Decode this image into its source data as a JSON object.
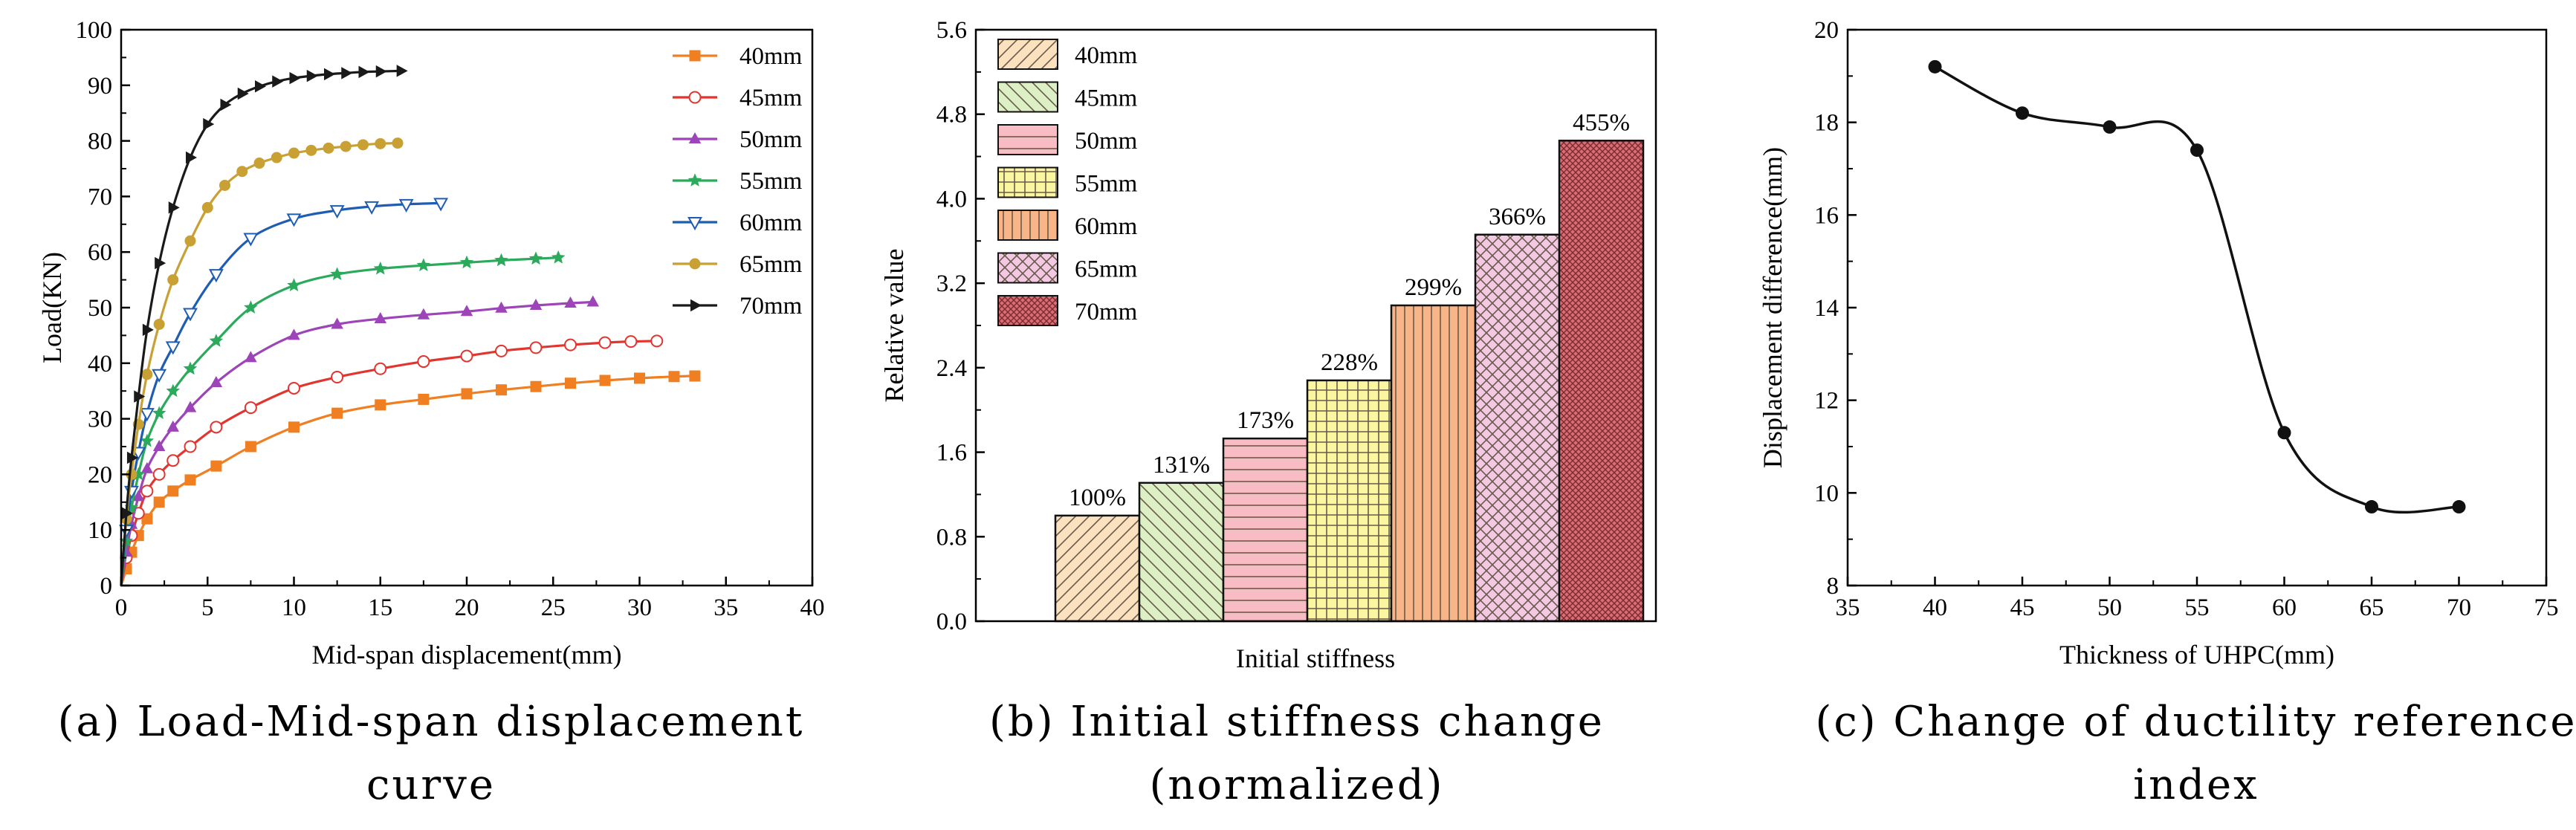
{
  "chart_data": [
    {
      "type": "line",
      "caption": [
        "(a) Load-Mid-span displacement",
        "curve"
      ],
      "xlabel": "Mid-span displacement(mm)",
      "ylabel": "Load(KN)",
      "xlim": [
        0,
        40
      ],
      "ylim": [
        0,
        100
      ],
      "xticks": [
        "0",
        "5",
        "10",
        "15",
        "20",
        "25",
        "30",
        "35",
        "40"
      ],
      "yticks": [
        "0",
        "10",
        "20",
        "30",
        "40",
        "50",
        "60",
        "70",
        "80",
        "90",
        "100"
      ],
      "legend_position": "top-right",
      "series": [
        {
          "name": "40mm",
          "color": "#F07F22",
          "marker": "square",
          "x": [
            0,
            0.3,
            0.6,
            1.0,
            1.5,
            2.2,
            3.0,
            4.0,
            5.5,
            7.5,
            10,
            12.5,
            15,
            17.5,
            20,
            22,
            24,
            26,
            28,
            30,
            32,
            33.2
          ],
          "y": [
            0,
            3,
            6,
            9,
            12,
            15,
            17,
            19,
            21.5,
            25,
            28.5,
            31,
            32.5,
            33.5,
            34.5,
            35.2,
            35.8,
            36.4,
            36.9,
            37.3,
            37.6,
            37.7
          ]
        },
        {
          "name": "45mm",
          "color": "#E2352F",
          "marker": "circle-open",
          "x": [
            0,
            0.3,
            0.6,
            1.0,
            1.5,
            2.2,
            3.0,
            4.0,
            5.5,
            7.5,
            10,
            12.5,
            15,
            17.5,
            20,
            22,
            24,
            26,
            28,
            29.5,
            31
          ],
          "y": [
            0,
            5,
            9,
            13,
            17,
            20,
            22.5,
            25,
            28.5,
            32,
            35.5,
            37.5,
            39,
            40.3,
            41.3,
            42.2,
            42.8,
            43.3,
            43.7,
            43.9,
            44
          ]
        },
        {
          "name": "50mm",
          "color": "#9C44B8",
          "marker": "triangle-up",
          "x": [
            0,
            0.3,
            0.6,
            1.0,
            1.5,
            2.2,
            3.0,
            4.0,
            5.5,
            7.5,
            10,
            12.5,
            15,
            17.5,
            20,
            22,
            24,
            26,
            27.3
          ],
          "y": [
            0,
            6,
            11,
            16,
            21,
            25,
            28.5,
            32,
            36.5,
            41,
            45,
            47,
            48,
            48.7,
            49.3,
            49.9,
            50.4,
            50.8,
            51
          ]
        },
        {
          "name": "55mm",
          "color": "#2BAA5C",
          "marker": "star",
          "x": [
            0,
            0.3,
            0.6,
            1.0,
            1.5,
            2.2,
            3.0,
            4.0,
            5.5,
            7.5,
            10,
            12.5,
            15,
            17.5,
            20,
            22,
            24,
            25.3
          ],
          "y": [
            0,
            8,
            14,
            20,
            26,
            31,
            35,
            39,
            44,
            50,
            54,
            56,
            57,
            57.6,
            58.1,
            58.5,
            58.8,
            59
          ]
        },
        {
          "name": "60mm",
          "color": "#1F5DB3",
          "marker": "triangle-down-open",
          "x": [
            0,
            0.3,
            0.6,
            1.0,
            1.5,
            2.2,
            3.0,
            4.0,
            5.5,
            7.5,
            10,
            12.5,
            14.5,
            16.5,
            18.5
          ],
          "y": [
            0,
            10,
            17,
            24,
            31,
            38,
            43,
            49,
            56,
            62.5,
            66,
            67.5,
            68.2,
            68.6,
            68.8
          ]
        },
        {
          "name": "65mm",
          "color": "#C8A034",
          "marker": "circle",
          "x": [
            0,
            0.3,
            0.6,
            1.0,
            1.5,
            2.2,
            3.0,
            4.0,
            5.0,
            6.0,
            7.0,
            8.0,
            9.0,
            10,
            11,
            12,
            13,
            14,
            15,
            16
          ],
          "y": [
            0,
            12,
            20,
            29,
            38,
            47,
            55,
            62,
            68,
            72,
            74.5,
            76,
            77,
            77.8,
            78.3,
            78.7,
            79,
            79.3,
            79.5,
            79.6
          ]
        },
        {
          "name": "70mm",
          "color": "#1A1A1A",
          "marker": "triangle-right",
          "x": [
            0,
            0.3,
            0.6,
            1.0,
            1.5,
            2.2,
            3.0,
            4.0,
            5.0,
            6.0,
            7.0,
            8.0,
            9.0,
            10,
            11,
            12,
            13,
            14,
            15,
            16.2
          ],
          "y": [
            0,
            13,
            23,
            34,
            46,
            58,
            68,
            77,
            83,
            86.5,
            88.5,
            89.8,
            90.7,
            91.3,
            91.7,
            92,
            92.2,
            92.4,
            92.5,
            92.6
          ]
        }
      ]
    },
    {
      "type": "bar",
      "caption": [
        "(b) Initial stiffness change",
        "(normalized)"
      ],
      "xlabel": "Initial stiffness",
      "ylabel": "Relative value",
      "ylim": [
        0,
        5.6
      ],
      "yticks": [
        "0.0",
        "0.8",
        "1.6",
        "2.4",
        "3.2",
        "4.0",
        "4.8",
        "5.6"
      ],
      "legend_position": "top-left",
      "categories": [
        "40mm",
        "45mm",
        "50mm",
        "55mm",
        "60mm",
        "65mm",
        "70mm"
      ],
      "values": [
        1.0,
        1.31,
        1.73,
        2.28,
        2.99,
        3.66,
        4.55
      ],
      "labels": [
        "100%",
        "131%",
        "173%",
        "228%",
        "299%",
        "366%",
        "455%"
      ],
      "fills": [
        "#FBE1BE",
        "#DDF0C5",
        "#F8BDC4",
        "#FAF7A0",
        "#F8B587",
        "#F2C8E3",
        "#D96F75"
      ]
    },
    {
      "type": "line",
      "caption": [
        "(c) Change of ductility reference",
        "index"
      ],
      "xlabel": "Thickness of UHPC(mm)",
      "ylabel": "Displacement difference(mm)",
      "xlim": [
        35,
        75
      ],
      "ylim": [
        8,
        20
      ],
      "xticks": [
        "35",
        "40",
        "45",
        "50",
        "55",
        "60",
        "65",
        "70",
        "75"
      ],
      "yticks": [
        "8",
        "10",
        "12",
        "14",
        "16",
        "18",
        "20"
      ],
      "series": [
        {
          "name": "Displacement difference",
          "color": "#111111",
          "marker": "circle",
          "x": [
            40,
            45,
            50,
            55,
            60,
            65,
            70
          ],
          "y": [
            19.2,
            18.2,
            17.9,
            17.4,
            11.3,
            9.7,
            9.7
          ]
        }
      ]
    }
  ]
}
